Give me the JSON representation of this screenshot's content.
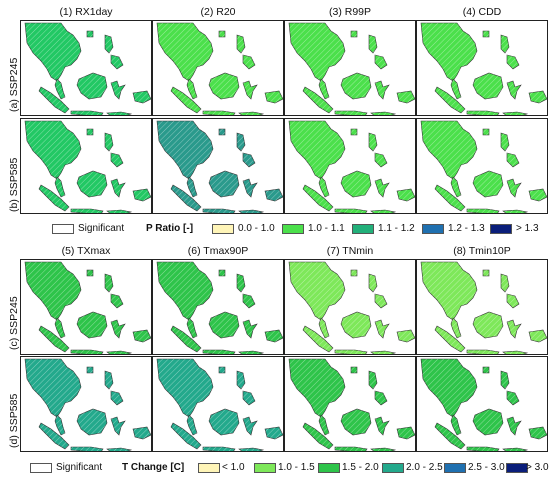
{
  "top": {
    "columns": [
      "(1) RX1day",
      "(2) R20",
      "(3) R99P",
      "(4) CDD"
    ],
    "rows": [
      "(a) SSP245",
      "(b) SSP585"
    ],
    "legend": {
      "significant": "Significant",
      "title": "P Ratio [-]",
      "classes": [
        {
          "label": "0.0 - 1.0",
          "color": "#fff5b8"
        },
        {
          "label": "1.0 - 1.1",
          "color": "#4be04b"
        },
        {
          "label": "1.1 - 1.2",
          "color": "#22b07a"
        },
        {
          "label": "1.2 - 1.3",
          "color": "#1f70b0"
        },
        {
          "label": "> 1.3",
          "color": "#0a1e7a"
        }
      ]
    },
    "panel_colors": [
      [
        "#22c864",
        "#4be04b",
        "#4be04b",
        "#4be04b"
      ],
      [
        "#22c864",
        "#2a9a8c",
        "#4be04b",
        "#4be04b"
      ]
    ]
  },
  "bottom": {
    "columns": [
      "(5) TXmax",
      "(6) Tmax90P",
      "(7) TNmin",
      "(8) Tmin10P"
    ],
    "rows": [
      "(c) SSP245",
      "(d) SSP585"
    ],
    "legend": {
      "significant": "Significant",
      "title": "T Change [C]",
      "classes": [
        {
          "label": "< 1.0",
          "color": "#fff5b8"
        },
        {
          "label": "1.0 - 1.5",
          "color": "#7ee85a"
        },
        {
          "label": "1.5 - 2.0",
          "color": "#2ec44a"
        },
        {
          "label": "2.0 - 2.5",
          "color": "#23a98c"
        },
        {
          "label": "2.5 - 3.0",
          "color": "#1f70b0"
        },
        {
          "label": "> 3.0",
          "color": "#0a1e7a"
        }
      ]
    },
    "panel_colors": [
      [
        "#2ec44a",
        "#2ec44a",
        "#7ee85a",
        "#7ee85a"
      ],
      [
        "#23a98c",
        "#23a98c",
        "#2ec44a",
        "#2ec44a"
      ]
    ]
  }
}
